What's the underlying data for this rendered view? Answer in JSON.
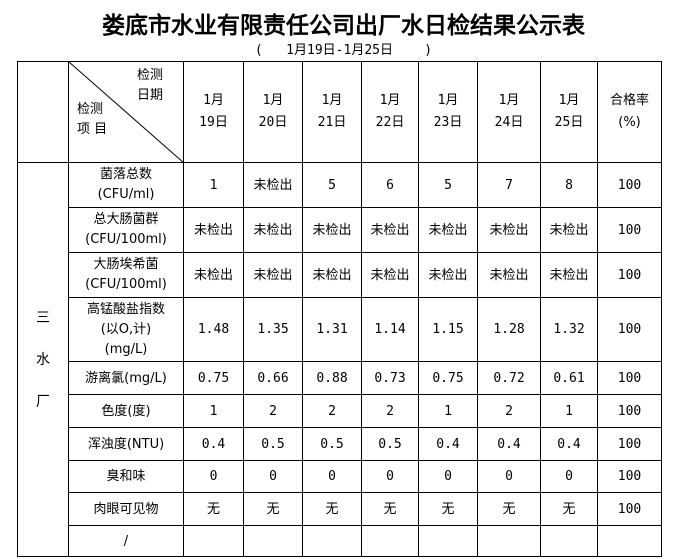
{
  "title": "娄底市水业有限责任公司出厂水日检结果公示表",
  "subtitle": "(   1月19日-1月25日    )",
  "header": {
    "diag_top": [
      "检测",
      "日期"
    ],
    "diag_bottom": [
      "检测",
      "项 目"
    ],
    "dates": [
      [
        "1月",
        "19日"
      ],
      [
        "1月",
        "20日"
      ],
      [
        "1月",
        "21日"
      ],
      [
        "1月",
        "22日"
      ],
      [
        "1月",
        "23日"
      ],
      [
        "1月",
        "24日"
      ],
      [
        "1月",
        "25日"
      ]
    ],
    "rate": [
      "合格率",
      "(%)"
    ]
  },
  "plant": [
    "三",
    "水",
    "厂"
  ],
  "rows": [
    {
      "item": [
        "菌落总数",
        "(CFU/ml)"
      ],
      "values": [
        "1",
        "未检出",
        "5",
        "6",
        "5",
        "7",
        "8"
      ],
      "rate": "100"
    },
    {
      "item": [
        "总大肠菌群",
        "(CFU/100ml)"
      ],
      "values": [
        "未检出",
        "未检出",
        "未检出",
        "未检出",
        "未检出",
        "未检出",
        "未检出"
      ],
      "rate": "100"
    },
    {
      "item": [
        "大肠埃希菌",
        "(CFU/100ml)"
      ],
      "values": [
        "未检出",
        "未检出",
        "未检出",
        "未检出",
        "未检出",
        "未检出",
        "未检出"
      ],
      "rate": "100"
    },
    {
      "item": [
        "高锰酸盐指数",
        "(以O,计)",
        "(mg/L)"
      ],
      "values": [
        "1.48",
        "1.35",
        "1.31",
        "1.14",
        "1.15",
        "1.28",
        "1.32"
      ],
      "rate": "100"
    },
    {
      "item": [
        "游离氯(mg/L)"
      ],
      "values": [
        "0.75",
        "0.66",
        "0.88",
        "0.73",
        "0.75",
        "0.72",
        "0.61"
      ],
      "rate": "100"
    },
    {
      "item": [
        "色度(度)"
      ],
      "values": [
        "1",
        "2",
        "2",
        "2",
        "1",
        "2",
        "1"
      ],
      "rate": "100"
    },
    {
      "item": [
        "浑浊度(NTU)"
      ],
      "values": [
        "0.4",
        "0.5",
        "0.5",
        "0.5",
        "0.4",
        "0.4",
        "0.4"
      ],
      "rate": "100"
    },
    {
      "item": [
        "臭和味"
      ],
      "values": [
        "0",
        "0",
        "0",
        "0",
        "0",
        "0",
        "0"
      ],
      "rate": "100"
    },
    {
      "item": [
        "肉眼可见物"
      ],
      "values": [
        "无",
        "无",
        "无",
        "无",
        "无",
        "无",
        "无"
      ],
      "rate": "100"
    },
    {
      "item": [
        "/"
      ],
      "values": [
        "",
        "",
        "",
        "",
        "",
        "",
        ""
      ],
      "rate": ""
    }
  ]
}
